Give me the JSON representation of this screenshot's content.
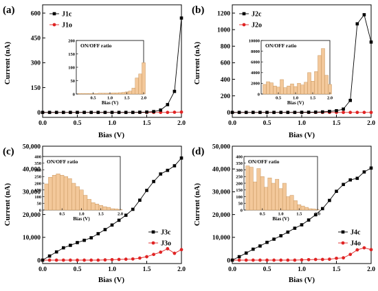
{
  "colors": {
    "closed": "#000000",
    "open": "#e02424",
    "bar_fill": "#f3c89a",
    "bar_stroke": "#c8965e"
  },
  "chart_data": [
    {
      "panel": "(a)",
      "type": "line",
      "xlabel": "Bias (V)",
      "ylabel": "Current (nA)",
      "xlim": [
        0,
        2
      ],
      "ylim": [
        -30,
        650
      ],
      "xticks": [
        "0.0",
        "0.5",
        "1.0",
        "1.5",
        "2.0"
      ],
      "yticks": [
        "0",
        "150",
        "300",
        "450",
        "600"
      ],
      "legend_pos": "top-left",
      "x": [
        0,
        0.1,
        0.2,
        0.3,
        0.4,
        0.5,
        0.6,
        0.7,
        0.8,
        0.9,
        1.0,
        1.1,
        1.2,
        1.3,
        1.4,
        1.5,
        1.6,
        1.7,
        1.8,
        1.9,
        2.0
      ],
      "series": [
        {
          "name": "J1c",
          "marker": "square",
          "values": [
            0,
            0,
            0,
            0,
            0,
            0,
            0,
            0,
            0,
            0,
            0,
            0,
            0,
            0,
            1,
            2,
            5,
            14,
            47,
            127,
            570
          ]
        },
        {
          "name": "J1o",
          "marker": "circle",
          "values": [
            0,
            0,
            0,
            0,
            0,
            0,
            0,
            0,
            0,
            0,
            0,
            0,
            0,
            0,
            0,
            0,
            0,
            0,
            0,
            1,
            2
          ]
        }
      ],
      "inset": {
        "type": "bar",
        "title": "ON/OFF ratio",
        "xlabel": "Bias (V)",
        "xlim": [
          0,
          2
        ],
        "ylim": [
          0,
          200
        ],
        "xticks": [
          "0.5",
          "1.0",
          "1.5",
          "2.0"
        ],
        "yticks": [
          "0",
          "50",
          "100",
          "150",
          "200"
        ],
        "x": [
          0.1,
          0.2,
          0.3,
          0.4,
          0.5,
          0.6,
          0.7,
          0.8,
          0.9,
          1.0,
          1.1,
          1.2,
          1.3,
          1.4,
          1.5,
          1.6,
          1.7,
          1.8,
          1.9,
          2.0
        ],
        "values": [
          2,
          2,
          2,
          2,
          2,
          2,
          3,
          3,
          3,
          3,
          4,
          4,
          5,
          6,
          8,
          11,
          22,
          60,
          75,
          117
        ]
      }
    },
    {
      "panel": "(b)",
      "type": "line",
      "xlabel": "Bias (V)",
      "ylabel": "Current (nA)",
      "xlim": [
        0,
        2
      ],
      "ylim": [
        -60,
        1300
      ],
      "xticks": [
        "0.0",
        "0.5",
        "1.0",
        "1.5",
        "2.0"
      ],
      "yticks": [
        "0",
        "200",
        "400",
        "600",
        "800",
        "1000",
        "1200"
      ],
      "legend_pos": "top-left",
      "x": [
        0,
        0.1,
        0.2,
        0.3,
        0.4,
        0.5,
        0.6,
        0.7,
        0.8,
        0.9,
        1.0,
        1.1,
        1.2,
        1.3,
        1.4,
        1.5,
        1.6,
        1.7,
        1.8,
        1.9,
        2.0
      ],
      "series": [
        {
          "name": "J2c",
          "marker": "square",
          "values": [
            0,
            0,
            0,
            0,
            0,
            0,
            0,
            0,
            0,
            0,
            1,
            2,
            3,
            6,
            12,
            20,
            40,
            145,
            1070,
            1180,
            850
          ]
        },
        {
          "name": "J2o",
          "marker": "circle",
          "values": [
            0,
            0,
            0,
            0,
            0,
            0,
            0,
            0,
            0,
            0,
            0,
            0,
            0,
            0,
            0,
            0,
            0,
            0,
            0,
            0,
            0
          ]
        }
      ],
      "inset": {
        "type": "bar",
        "title": "ON/OFF ratio",
        "xlabel": "Bias (V)",
        "xlim": [
          0,
          2
        ],
        "ylim": [
          0,
          10000
        ],
        "xticks": [
          "0.5",
          "1.0",
          "1.5",
          "2.0"
        ],
        "yticks": [
          "0",
          "2000",
          "4000",
          "6000",
          "8000",
          "10000"
        ],
        "x": [
          0.1,
          0.2,
          0.3,
          0.4,
          0.5,
          0.6,
          0.7,
          0.8,
          0.9,
          1.0,
          1.1,
          1.2,
          1.3,
          1.4,
          1.5,
          1.6,
          1.7,
          1.8,
          1.9,
          2.0
        ],
        "values": [
          1800,
          2300,
          2100,
          1500,
          1300,
          2700,
          1200,
          1500,
          1900,
          1400,
          2000,
          1700,
          2200,
          4000,
          2400,
          4200,
          7200,
          8500,
          3500,
          1800
        ]
      }
    },
    {
      "panel": "(c)",
      "type": "line",
      "xlabel": "Bias (V)",
      "ylabel": "Current (nA)",
      "xlim": [
        0,
        2
      ],
      "ylim": [
        -1500,
        50000
      ],
      "xticks": [
        "0.0",
        "0.5",
        "1.0",
        "1.5",
        "2.0"
      ],
      "yticks": [
        "0",
        "10,000",
        "20,000",
        "30,000",
        "40,000",
        "50,000"
      ],
      "legend_pos": "bottom-right",
      "x": [
        0,
        0.1,
        0.2,
        0.3,
        0.4,
        0.5,
        0.6,
        0.7,
        0.8,
        0.9,
        1.0,
        1.1,
        1.2,
        1.3,
        1.4,
        1.5,
        1.6,
        1.7,
        1.8,
        1.9,
        2.0
      ],
      "series": [
        {
          "name": "J3c",
          "marker": "square",
          "values": [
            0,
            1800,
            3600,
            5400,
            6500,
            7700,
            8700,
            9800,
            11600,
            13400,
            15400,
            17500,
            19700,
            22300,
            26300,
            30600,
            34500,
            37800,
            39400,
            41400,
            44800
          ]
        },
        {
          "name": "J3o",
          "marker": "circle",
          "values": [
            0,
            0,
            0,
            0,
            0,
            0,
            0,
            0,
            0,
            100,
            200,
            300,
            400,
            500,
            900,
            1500,
            2500,
            3500,
            5000,
            3000,
            4600
          ]
        }
      ],
      "inset": {
        "type": "bar",
        "title": "ON/OFF ratio",
        "xlabel": "Bias (V)",
        "xlim": [
          0,
          2
        ],
        "ylim": [
          0,
          400
        ],
        "xticks": [
          "0.5",
          "1.0",
          "1.5",
          "2.0"
        ],
        "yticks": [
          "0",
          "50",
          "100",
          "150",
          "200",
          "250",
          "300",
          "350",
          "400"
        ],
        "x": [
          0.1,
          0.2,
          0.3,
          0.4,
          0.5,
          0.6,
          0.7,
          0.8,
          0.9,
          1.0,
          1.1,
          1.2,
          1.3,
          1.4,
          1.5,
          1.6,
          1.7,
          1.8,
          1.9,
          2.0
        ],
        "values": [
          195,
          245,
          260,
          270,
          260,
          250,
          235,
          200,
          175,
          150,
          110,
          80,
          55,
          45,
          35,
          25,
          20,
          10,
          8,
          3
        ]
      }
    },
    {
      "panel": "(d)",
      "type": "line",
      "xlabel": "Bias (V)",
      "ylabel": "Current (nA)",
      "xlim": [
        0,
        2
      ],
      "ylim": [
        -1500,
        50000
      ],
      "xticks": [
        "0.0",
        "0.5",
        "1.0",
        "1.5",
        "2.0"
      ],
      "yticks": [
        "0",
        "10,000",
        "20,000",
        "30,000",
        "40,000",
        "50,000"
      ],
      "legend_pos": "bottom-right",
      "x": [
        0,
        0.1,
        0.2,
        0.3,
        0.4,
        0.5,
        0.6,
        0.7,
        0.8,
        0.9,
        1.0,
        1.1,
        1.2,
        1.3,
        1.4,
        1.5,
        1.6,
        1.7,
        1.8,
        1.9,
        2.0
      ],
      "series": [
        {
          "name": "J4c",
          "marker": "square",
          "values": [
            0,
            1500,
            3100,
            4800,
            6200,
            7800,
            9200,
            10700,
            12300,
            14000,
            15500,
            17600,
            19900,
            22600,
            26200,
            30200,
            33200,
            35200,
            35900,
            38700,
            40400
          ]
        },
        {
          "name": "J4o",
          "marker": "circle",
          "values": [
            0,
            0,
            0,
            0,
            0,
            0,
            0,
            0,
            0,
            0,
            100,
            200,
            300,
            300,
            400,
            800,
            1000,
            2500,
            4500,
            5400,
            4600
          ]
        }
      ],
      "inset": {
        "type": "bar",
        "title": "ON/OFF ratio",
        "xlabel": "Bias (V)",
        "xlim": [
          0,
          2
        ],
        "ylim": [
          0,
          400
        ],
        "xticks": [
          "0.5",
          "1.0",
          "1.5",
          "2.0"
        ],
        "yticks": [
          "0",
          "50",
          "100",
          "150",
          "200",
          "250",
          "300",
          "350",
          "400"
        ],
        "x": [
          0.1,
          0.2,
          0.3,
          0.4,
          0.5,
          0.6,
          0.7,
          0.8,
          0.9,
          1.0,
          1.1,
          1.2,
          1.3,
          1.4,
          1.5,
          1.6,
          1.7,
          1.8,
          1.9,
          2.0
        ],
        "values": [
          330,
          320,
          210,
          310,
          250,
          170,
          240,
          200,
          230,
          160,
          200,
          100,
          110,
          70,
          40,
          30,
          20,
          10,
          8,
          3
        ]
      }
    }
  ]
}
